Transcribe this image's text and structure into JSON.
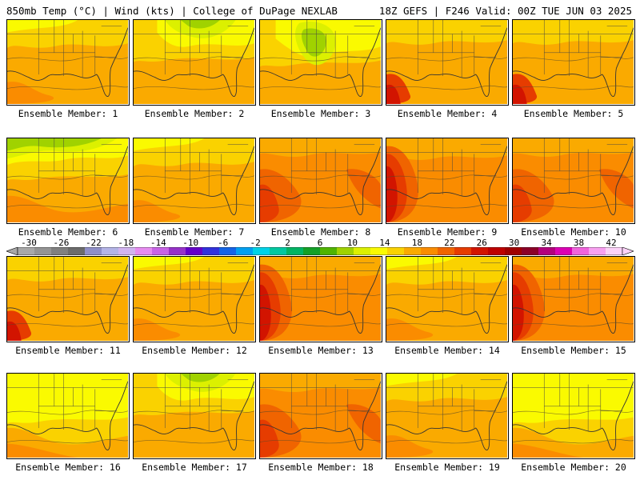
{
  "header": {
    "left": "850mb Temp (°C) | Wind (kts) | College of DuPage NEXLAB",
    "right": "18Z GEFS | F246 Valid: 00Z TUE JUN 03 2025"
  },
  "colorbar": {
    "tick_labels": [
      "-30",
      "-26",
      "-22",
      "-18",
      "-14",
      "-10",
      "-6",
      "-2",
      "2",
      "6",
      "10",
      "14",
      "18",
      "22",
      "26",
      "30",
      "34",
      "38",
      "42"
    ],
    "range": [
      -30,
      42
    ],
    "step": 2,
    "colors": [
      "#a8a8a8",
      "#949494",
      "#808080",
      "#6c6c6c",
      "#8f8fc8",
      "#b4b4e6",
      "#d2b4f0",
      "#e68cf0",
      "#c864e6",
      "#9632c8",
      "#6400c8",
      "#3232dc",
      "#1464e6",
      "#00a0f0",
      "#00d2e6",
      "#00c8a0",
      "#00b464",
      "#14a028",
      "#50b400",
      "#a0d200",
      "#dcf000",
      "#fafa00",
      "#fad200",
      "#faaa00",
      "#fa8c00",
      "#f06400",
      "#e63c00",
      "#d21400",
      "#be0000",
      "#a00000",
      "#8c0028",
      "#b4007d",
      "#dc00b4",
      "#f064dc",
      "#f8a0f0",
      "#fcd2f8"
    ]
  },
  "members": [
    {
      "label": "Ensemble Member: 1",
      "profile": "warm"
    },
    {
      "label": "Ensemble Member: 2",
      "profile": "cool-ne"
    },
    {
      "label": "Ensemble Member: 3",
      "profile": "cool-center"
    },
    {
      "label": "Ensemble Member: 4",
      "profile": "warm-sw"
    },
    {
      "label": "Ensemble Member: 5",
      "profile": "warm-sw"
    },
    {
      "label": "Ensemble Member: 6",
      "profile": "cool-nw"
    },
    {
      "label": "Ensemble Member: 7",
      "profile": "warm"
    },
    {
      "label": "Ensemble Member: 8",
      "profile": "hot"
    },
    {
      "label": "Ensemble Member: 9",
      "profile": "hot-w"
    },
    {
      "label": "Ensemble Member: 10",
      "profile": "hot"
    },
    {
      "label": "Ensemble Member: 11",
      "profile": "warm-sw"
    },
    {
      "label": "Ensemble Member: 12",
      "profile": "warm"
    },
    {
      "label": "Ensemble Member: 13",
      "profile": "hot-w"
    },
    {
      "label": "Ensemble Member: 14",
      "profile": "warm"
    },
    {
      "label": "Ensemble Member: 15",
      "profile": "hot-w"
    },
    {
      "label": "Ensemble Member: 16",
      "profile": "mild"
    },
    {
      "label": "Ensemble Member: 17",
      "profile": "cool-ne"
    },
    {
      "label": "Ensemble Member: 18",
      "profile": "hot"
    },
    {
      "label": "Ensemble Member: 19",
      "profile": "warm"
    },
    {
      "label": "Ensemble Member: 20",
      "profile": "mild"
    }
  ]
}
